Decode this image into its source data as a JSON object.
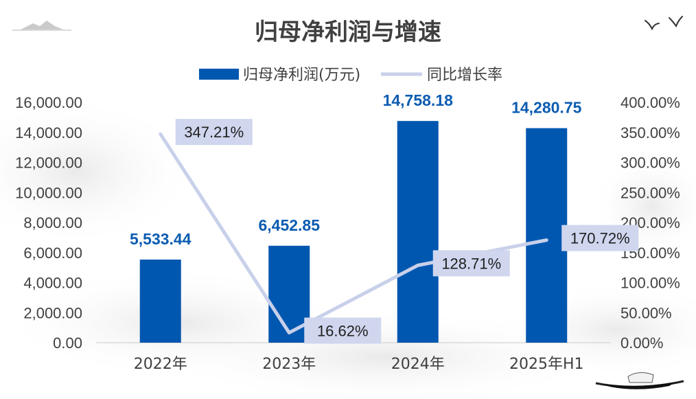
{
  "colors": {
    "bar": "#0057b0",
    "line": "#c8d0ea",
    "bar_label": "#0b5cb1",
    "line_label_bg": "#cfd6ee",
    "text": "#404040"
  },
  "decorations": [
    "ink-mountain-icon",
    "birds-icon",
    "boat-icon"
  ],
  "chart_data": {
    "type": "bar",
    "title": "归母净利润与增速",
    "categories": [
      "2022年",
      "2023年",
      "2024年",
      "2025年H1"
    ],
    "series": [
      {
        "name": "归母净利润(万元)",
        "type": "bar",
        "axis": "left",
        "values": [
          5533.44,
          6452.85,
          14758.18,
          14280.75
        ],
        "labels": [
          "5,533.44",
          "6,452.85",
          "14,758.18",
          "14,280.75"
        ]
      },
      {
        "name": "同比增长率",
        "type": "line",
        "axis": "right",
        "values": [
          347.21,
          16.62,
          128.71,
          170.72
        ],
        "labels": [
          "347.21%",
          "16.62%",
          "128.71%",
          "170.72%"
        ]
      }
    ],
    "y_left": {
      "min": 0,
      "max": 16000,
      "ticks": [
        "0.00",
        "2,000.00",
        "4,000.00",
        "6,000.00",
        "8,000.00",
        "10,000.00",
        "12,000.00",
        "14,000.00",
        "16,000.00"
      ]
    },
    "y_right": {
      "min": 0,
      "max": 400,
      "ticks": [
        "0.00%",
        "50.00%",
        "100.00%",
        "150.00%",
        "200.00%",
        "250.00%",
        "300.00%",
        "350.00%",
        "400.00%"
      ]
    },
    "legend_position": "top",
    "grid": false
  }
}
